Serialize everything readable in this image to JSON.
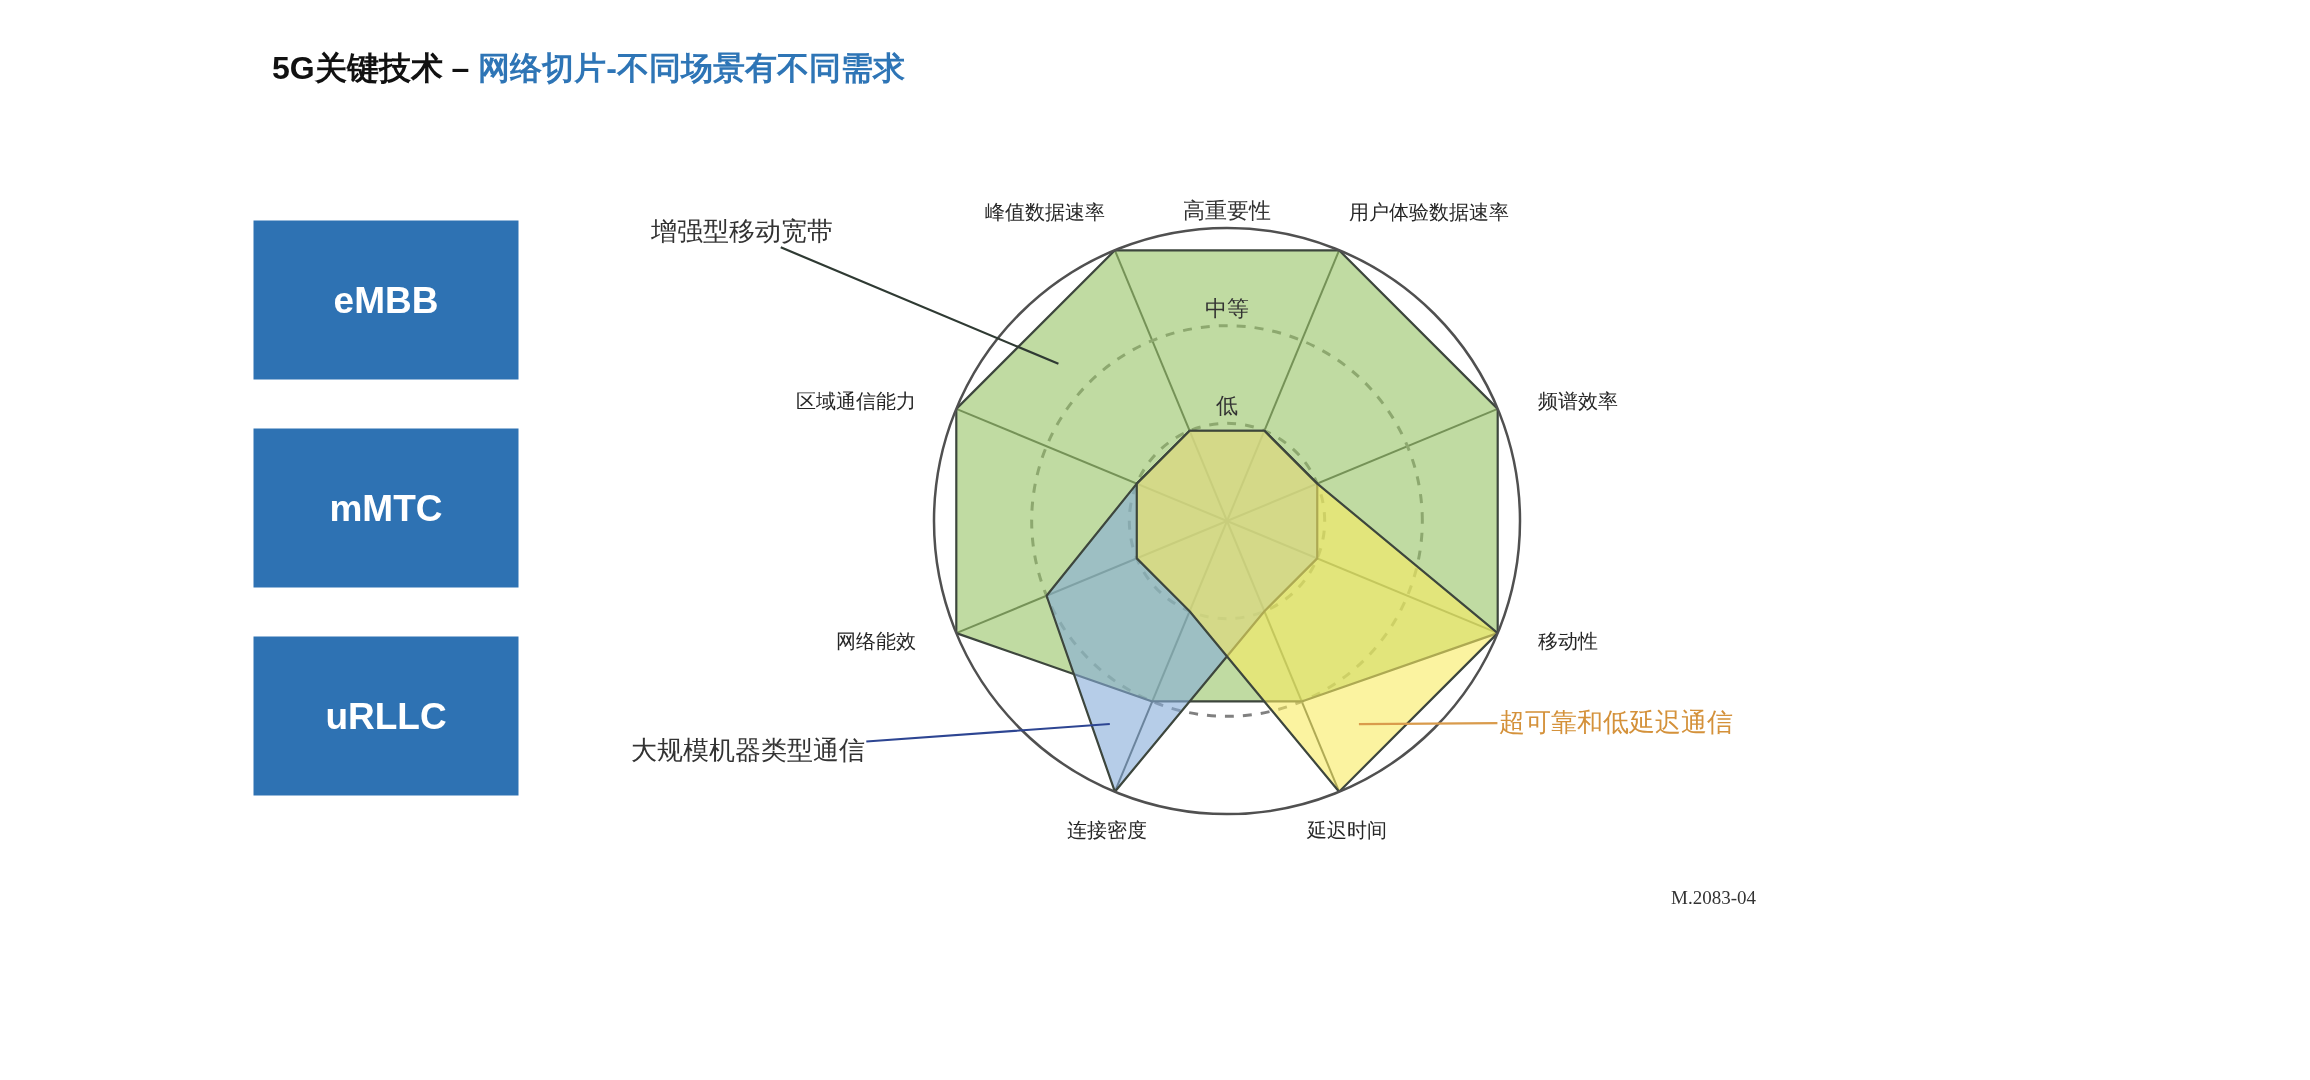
{
  "chart_data": {
    "type": "radar",
    "title": "5G关键技术 – 网络切片-不同场景有不同需求",
    "categories": [
      "峰值数据速率",
      "用户体验数据速率",
      "频谱效率",
      "移动性",
      "延迟时间",
      "连接密度",
      "网络能效",
      "区域通信能力"
    ],
    "series": [
      {
        "name": "增强型移动宽带",
        "color": "#c0dba2",
        "values": [
          3,
          3,
          3,
          3,
          2,
          2,
          3,
          3
        ]
      },
      {
        "name": "大规模机器类型通信",
        "color": "#b6cde8",
        "values": [
          1,
          1,
          1,
          1,
          1,
          3,
          2,
          1
        ]
      },
      {
        "name": "超可靠和低延迟通信",
        "color": "#fbf3a0",
        "values": [
          1,
          1,
          1,
          3,
          3,
          1,
          1,
          1
        ]
      }
    ],
    "ylim": [
      0,
      3
    ],
    "yticks": [
      {
        "value": 1,
        "label": "低"
      },
      {
        "value": 2,
        "label": "中等"
      },
      {
        "value": 3,
        "label": "高重要性"
      }
    ],
    "grid": true,
    "legend": false,
    "marker": "none",
    "line_style": "solid",
    "annotations": [
      "eMBB",
      "mMTC",
      "uRLLC",
      "M.2083-04"
    ]
  }
}
